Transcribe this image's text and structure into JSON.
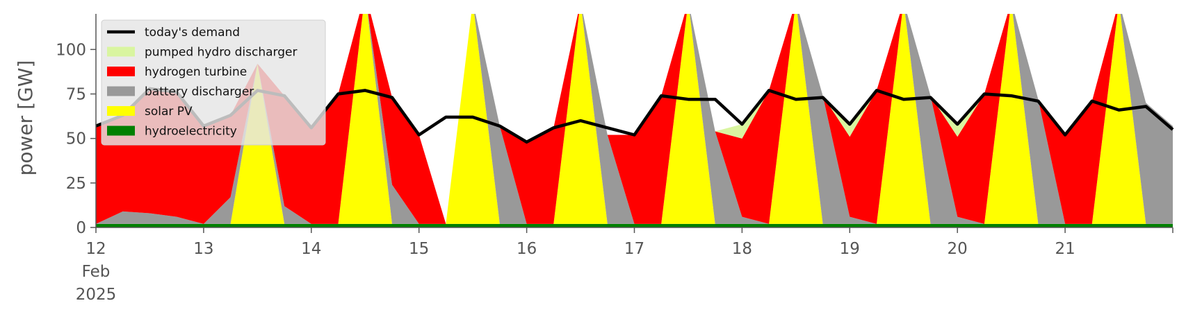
{
  "chart_data": {
    "type": "area",
    "title": "",
    "ylabel": "power [GW]",
    "xlabel": "",
    "ylim": [
      0,
      120
    ],
    "xlim": [
      0,
      10
    ],
    "grid": false,
    "legend_position": "top-left",
    "y_ticks": [
      0,
      25,
      50,
      75,
      100
    ],
    "x_ticks": [
      {
        "value": 0,
        "label": "12"
      },
      {
        "value": 1,
        "label": "13"
      },
      {
        "value": 2,
        "label": "14"
      },
      {
        "value": 3,
        "label": "15"
      },
      {
        "value": 4,
        "label": "16"
      },
      {
        "value": 5,
        "label": "17"
      },
      {
        "value": 6,
        "label": "18"
      },
      {
        "value": 7,
        "label": "19"
      },
      {
        "value": 8,
        "label": "20"
      },
      {
        "value": 9,
        "label": "21"
      }
    ],
    "x_start_month": "Feb",
    "x_start_year": "2025",
    "legend": [
      {
        "label": "today's demand",
        "kind": "line",
        "color": "#000000"
      },
      {
        "label": "pumped hydro discharger",
        "kind": "patch",
        "color": "#d9f5a0"
      },
      {
        "label": "hydrogen turbine",
        "kind": "patch",
        "color": "#ff0000"
      },
      {
        "label": "battery discharger",
        "kind": "patch",
        "color": "#999999"
      },
      {
        "label": "solar PV",
        "kind": "patch",
        "color": "#ffff00"
      },
      {
        "label": "hydroelectricity",
        "kind": "patch",
        "color": "#008000"
      }
    ],
    "x": [
      0.0,
      0.25,
      0.5,
      0.75,
      1.0,
      1.25,
      1.5,
      1.75,
      2.0,
      2.25,
      2.5,
      2.75,
      3.0,
      3.25,
      3.5,
      3.75,
      4.0,
      4.25,
      4.5,
      4.75,
      5.0,
      5.25,
      5.5,
      5.75,
      6.0,
      6.25,
      6.5,
      6.75,
      7.0,
      7.25,
      7.5,
      7.75,
      8.0,
      8.25,
      8.5,
      8.75,
      9.0,
      9.25,
      9.5,
      9.75,
      10.0
    ],
    "demand": [
      57,
      63,
      78,
      76,
      57,
      63,
      77,
      74,
      56,
      75,
      77,
      73,
      52,
      62,
      62,
      57,
      48,
      56,
      60,
      56,
      52,
      74,
      72,
      72,
      58,
      77,
      72,
      73,
      58,
      77,
      72,
      73,
      58,
      75,
      74,
      71,
      52,
      71,
      66,
      68,
      55
    ],
    "stack_order": [
      "hydroelectricity",
      "solar PV",
      "battery discharger",
      "hydrogen turbine",
      "pumped hydro discharger"
    ],
    "series": [
      {
        "name": "hydroelectricity",
        "color": "#008000",
        "values": [
          2,
          2,
          2,
          2,
          2,
          2,
          2,
          2,
          2,
          2,
          2,
          2,
          2,
          2,
          2,
          2,
          2,
          2,
          2,
          2,
          2,
          2,
          2,
          2,
          2,
          2,
          2,
          2,
          2,
          2,
          2,
          2,
          2,
          2,
          2,
          2,
          2,
          2,
          2,
          2,
          2
        ]
      },
      {
        "name": "solar PV",
        "color": "#ffff00",
        "values": [
          0,
          0,
          0,
          0,
          0,
          0,
          90,
          0,
          0,
          0,
          130,
          0,
          0,
          0,
          125,
          0,
          0,
          0,
          125,
          0,
          0,
          0,
          125,
          0,
          0,
          0,
          125,
          0,
          0,
          0,
          125,
          0,
          0,
          0,
          125,
          0,
          0,
          0,
          125,
          0,
          0
        ]
      },
      {
        "name": "battery discharger",
        "color": "#999999",
        "values": [
          0,
          7,
          6,
          4,
          0,
          15,
          0,
          10,
          0,
          0,
          0,
          22,
          0,
          0,
          0,
          55,
          0,
          0,
          0,
          50,
          0,
          0,
          0,
          52,
          4,
          0,
          0,
          72,
          4,
          0,
          0,
          72,
          4,
          0,
          0,
          70,
          0,
          0,
          0,
          68,
          55
        ]
      },
      {
        "name": "hydrogen turbine",
        "color": "#ff0000",
        "values": [
          55,
          54,
          70,
          70,
          55,
          46,
          0,
          62,
          54,
          73,
          0,
          49,
          50,
          0,
          0,
          0,
          46,
          54,
          0,
          0,
          50,
          72,
          0,
          0,
          44,
          75,
          0,
          0,
          45,
          75,
          0,
          0,
          45,
          73,
          0,
          0,
          50,
          69,
          0,
          0,
          0
        ]
      },
      {
        "name": "pumped hydro discharger",
        "color": "#d9f5a0",
        "values": [
          0,
          0,
          0,
          0,
          0,
          0,
          0,
          0,
          0,
          0,
          0,
          0,
          0,
          0,
          0,
          0,
          0,
          0,
          0,
          0,
          0,
          0,
          0,
          0,
          8,
          0,
          0,
          0,
          8,
          0,
          0,
          0,
          8,
          0,
          0,
          0,
          0,
          0,
          0,
          0,
          0
        ]
      }
    ]
  }
}
